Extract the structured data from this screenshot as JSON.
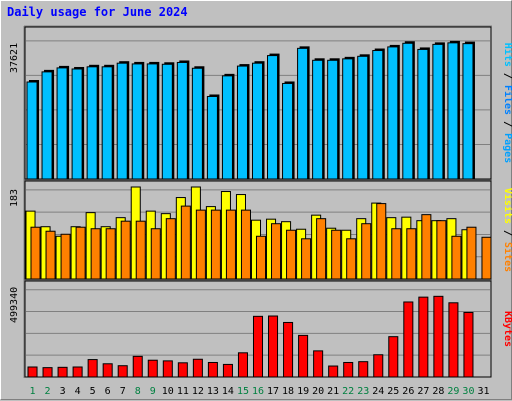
{
  "title": "Daily usage for June 2024",
  "colors": {
    "hits": "#00c0ff",
    "files": "#0080ff",
    "pages": "#00a0ff",
    "visits": "#ffff00",
    "sites": "#ff8000",
    "kbytes": "#ff0000",
    "weekend_label": "#008040",
    "day_label": "#000000"
  },
  "chart_data": [
    {
      "type": "bar",
      "name": "hits-panel",
      "categories": [
        "1",
        "2",
        "3",
        "4",
        "5",
        "6",
        "7",
        "8",
        "9",
        "10",
        "11",
        "12",
        "13",
        "14",
        "15",
        "16",
        "17",
        "18",
        "19",
        "20",
        "21",
        "22",
        "23",
        "24",
        "25",
        "26",
        "27",
        "28",
        "29",
        "30",
        "31"
      ],
      "ylabel_parts": [
        "Pages",
        "Files",
        "Hits"
      ],
      "ymax_label": "37621",
      "ylim": [
        0,
        42000
      ],
      "series": [
        {
          "name": "Hits",
          "values": [
            26800,
            29600,
            30700,
            30400,
            31000,
            31000,
            32000,
            31800,
            31800,
            31700,
            32200,
            30600,
            22800,
            28500,
            31200,
            32000,
            34100,
            26400,
            36100,
            32800,
            32800,
            33200,
            33900,
            35500,
            36500,
            37500,
            35800,
            37200,
            37621,
            37400,
            0
          ]
        }
      ]
    },
    {
      "type": "bar",
      "name": "visits-panel",
      "categories": [
        "1",
        "2",
        "3",
        "4",
        "5",
        "6",
        "7",
        "8",
        "9",
        "10",
        "11",
        "12",
        "13",
        "14",
        "15",
        "16",
        "17",
        "18",
        "19",
        "20",
        "21",
        "22",
        "23",
        "24",
        "25",
        "26",
        "27",
        "28",
        "29",
        "30",
        "31"
      ],
      "ylabel_parts": [
        "Sites",
        "Visits"
      ],
      "ymax_label": "183",
      "ylim": [
        0,
        183
      ],
      "series": [
        {
          "name": "Visits",
          "values": [
            135,
            104,
            85,
            104,
            132,
            104,
            122,
            183,
            135,
            130,
            162,
            183,
            144,
            174,
            168,
            117,
            119,
            114,
            99,
            127,
            101,
            97,
            120,
            151,
            122,
            123,
            116,
            116,
            120,
            98,
            0
          ]
        },
        {
          "name": "Sites",
          "values": [
            103,
            95,
            89,
            103,
            100,
            100,
            115,
            115,
            100,
            120,
            145,
            137,
            137,
            137,
            137,
            85,
            110,
            97,
            80,
            120,
            97,
            80,
            110,
            150,
            100,
            100,
            128,
            116,
            85,
            103,
            83
          ]
        }
      ]
    },
    {
      "type": "bar",
      "name": "kbytes-panel",
      "categories": [
        "1",
        "2",
        "3",
        "4",
        "5",
        "6",
        "7",
        "8",
        "9",
        "10",
        "11",
        "12",
        "13",
        "14",
        "15",
        "16",
        "17",
        "18",
        "19",
        "20",
        "21",
        "22",
        "23",
        "24",
        "25",
        "26",
        "27",
        "28",
        "29",
        "30",
        "31"
      ],
      "ylabel_parts": [
        "KBytes"
      ],
      "ymax_label": "499340",
      "ylim": [
        0,
        595000
      ],
      "series": [
        {
          "name": "KBytes",
          "values": [
            62000,
            58000,
            60000,
            62000,
            108000,
            82000,
            70000,
            128000,
            104000,
            100000,
            88000,
            110000,
            90000,
            78000,
            150000,
            376000,
            378000,
            338000,
            258000,
            162000,
            68000,
            90000,
            95000,
            138000,
            250000,
            465000,
            495000,
            500000,
            460000,
            400000,
            0
          ]
        }
      ]
    }
  ],
  "x_labels": [
    "1",
    "2",
    "3",
    "4",
    "5",
    "6",
    "7",
    "8",
    "9",
    "10",
    "11",
    "12",
    "13",
    "14",
    "15",
    "16",
    "17",
    "18",
    "19",
    "20",
    "21",
    "22",
    "23",
    "24",
    "25",
    "26",
    "27",
    "28",
    "29",
    "30",
    "31"
  ],
  "weekend_days": [
    1,
    2,
    8,
    9,
    15,
    16,
    22,
    23,
    29,
    30
  ]
}
